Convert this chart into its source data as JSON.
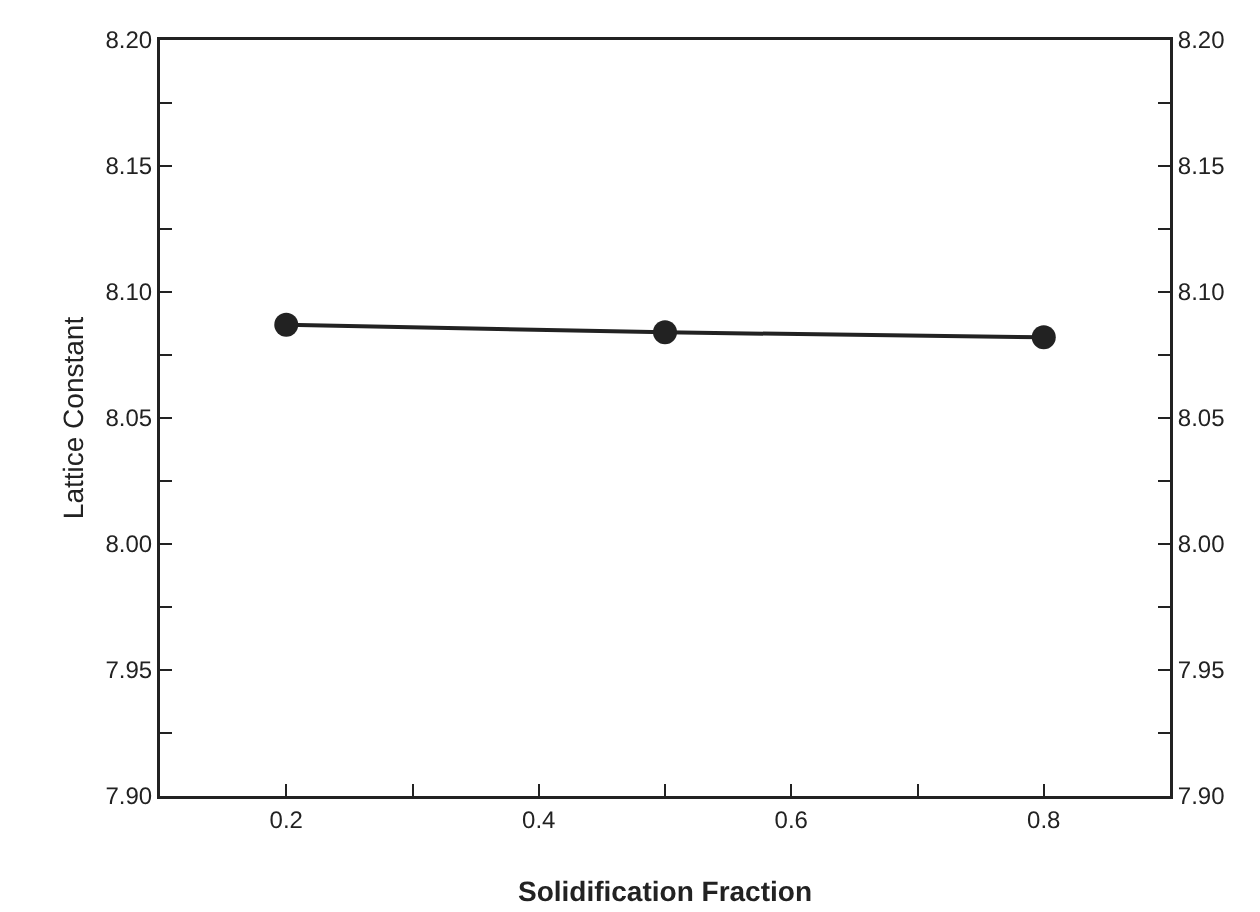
{
  "chart_data": {
    "type": "line",
    "xlabel": "Solidification Fraction",
    "ylabel": "Lattice Constant",
    "x": [
      0.2,
      0.5,
      0.8
    ],
    "series": [
      {
        "color": "#222222",
        "values": [
          8.087,
          8.084,
          8.082
        ]
      }
    ],
    "xlim": [
      0.1,
      0.9
    ],
    "xticks": [
      0.2,
      {
        "value": 0.3,
        "label": null
      },
      0.4,
      {
        "value": 0.5,
        "label": null
      },
      0.6,
      {
        "value": 0.7,
        "label": null
      },
      0.8
    ],
    "ylim": [
      7.9,
      8.2
    ],
    "yticks": [
      {
        "value": 7.9,
        "label": "7.90"
      },
      {
        "value": 7.925,
        "label": null
      },
      {
        "value": 7.95,
        "label": "7.95"
      },
      {
        "value": 7.975,
        "label": null
      },
      {
        "value": 8.0,
        "label": "8.00"
      },
      {
        "value": 8.025,
        "label": null
      },
      {
        "value": 8.05,
        "label": "8.05"
      },
      {
        "value": 8.075,
        "label": null
      },
      {
        "value": 8.1,
        "label": "8.10"
      },
      {
        "value": 8.125,
        "label": null
      },
      {
        "value": 8.15,
        "label": "8.15"
      },
      {
        "value": 8.175,
        "label": null
      },
      {
        "value": 8.2,
        "label": "8.20"
      }
    ],
    "y2lim": [
      7.9,
      8.2
    ],
    "y2ticks": [
      {
        "value": 7.9,
        "label": "7.90"
      },
      {
        "value": 7.925,
        "label": null
      },
      {
        "value": 7.95,
        "label": "7.95"
      },
      {
        "value": 7.975,
        "label": null
      },
      {
        "value": 8.0,
        "label": "8.00"
      },
      {
        "value": 8.025,
        "label": null
      },
      {
        "value": 8.05,
        "label": "8.05"
      },
      {
        "value": 8.075,
        "label": null
      },
      {
        "value": 8.1,
        "label": "8.10"
      },
      {
        "value": 8.125,
        "label": null
      },
      {
        "value": 8.15,
        "label": "8.15"
      },
      {
        "value": 8.175,
        "label": null
      },
      {
        "value": 8.2,
        "label": "8.20"
      }
    ],
    "marker": "circle",
    "line_style": "solid",
    "grid": false
  }
}
